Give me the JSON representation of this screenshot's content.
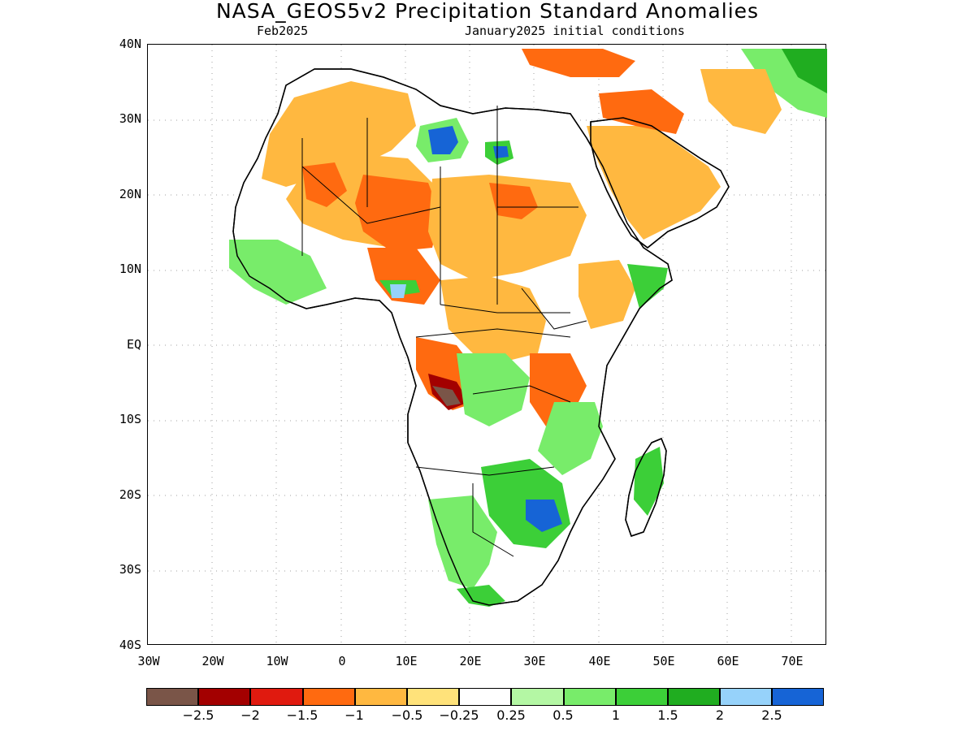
{
  "header": {
    "title": "NASA_GEOS5v2 Precipitation Standard Anomalies",
    "valid_month": "Feb2025",
    "init_conditions": "January2025 initial conditions"
  },
  "axes": {
    "lat_labels": [
      "40N",
      "30N",
      "20N",
      "10N",
      "EQ",
      "10S",
      "20S",
      "30S",
      "40S"
    ],
    "lon_labels": [
      "30W",
      "20W",
      "10W",
      "0",
      "10E",
      "20E",
      "30E",
      "40E",
      "50E",
      "60E",
      "70E"
    ]
  },
  "legend": {
    "colors": [
      "#7a5548",
      "#a30000",
      "#e01a0f",
      "#ff6a10",
      "#ffb840",
      "#ffe27a",
      "#ffffff",
      "#b4f7a4",
      "#78ec6a",
      "#3ccf38",
      "#20ad20",
      "#96d2fa",
      "#1664d6"
    ],
    "labels": [
      "−2.5",
      "−2",
      "−1.5",
      "−1",
      "−0.5",
      "−0.25",
      "0.25",
      "0.5",
      "1",
      "1.5",
      "2",
      "2.5"
    ]
  },
  "map": {
    "region": "Africa",
    "colors": {
      "coast": "#000000",
      "grid": "#a0a0a0"
    }
  }
}
